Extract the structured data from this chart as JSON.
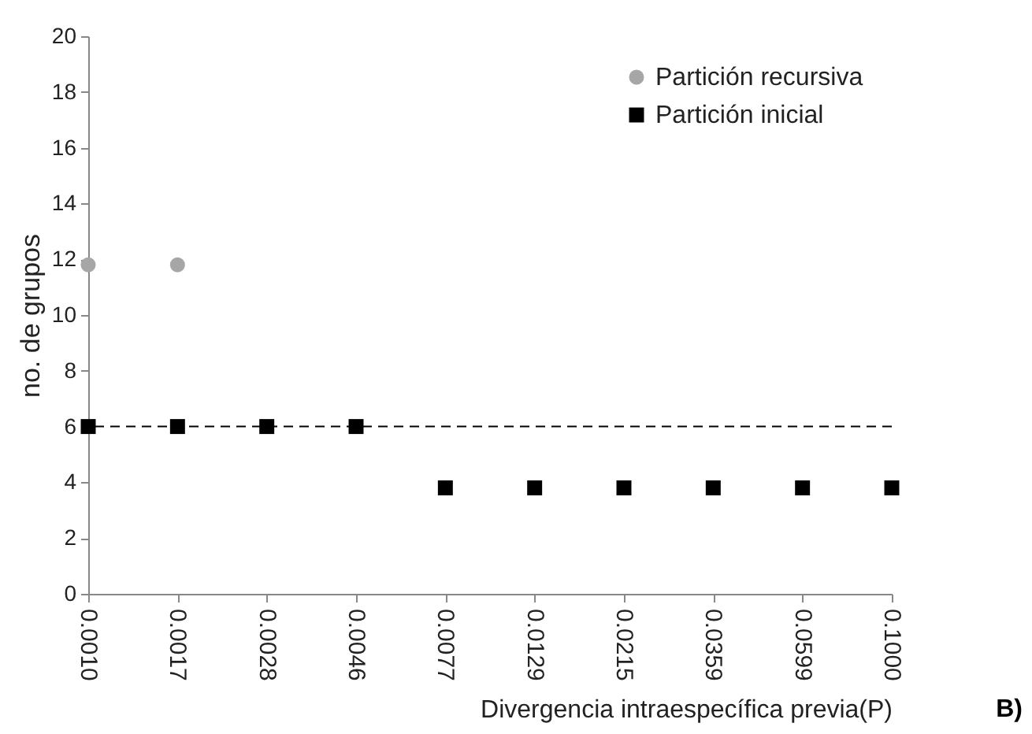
{
  "chart_data": {
    "type": "scatter",
    "xlabel": "Divergencia intraespecífica previa(P)",
    "ylabel": "no. de grupos",
    "categories": [
      "0.0010",
      "0.0017",
      "0.0028",
      "0.0046",
      "0.0077",
      "0.0129",
      "0.0215",
      "0.0359",
      "0.0599",
      "0.1000"
    ],
    "series": [
      {
        "name": "Partición recursiva",
        "color": "#a6a6a6",
        "marker": "circle",
        "values": [
          11.8,
          11.8,
          null,
          null,
          null,
          null,
          null,
          null,
          null,
          null
        ]
      },
      {
        "name": "Partición inicial",
        "color": "#000000",
        "marker": "square",
        "values": [
          6,
          6,
          6,
          6,
          3.8,
          3.8,
          3.8,
          3.8,
          3.8,
          3.8
        ]
      }
    ],
    "ylim": [
      0,
      20
    ],
    "yticks": [
      0,
      2,
      4,
      6,
      8,
      10,
      12,
      14,
      16,
      18,
      20
    ],
    "grid": false,
    "legend": "top right",
    "ref_lines": [
      {
        "axis": "y",
        "value": 6,
        "color": "#000000",
        "line_style": "dashed"
      }
    ],
    "annotations": [
      "B)"
    ]
  }
}
